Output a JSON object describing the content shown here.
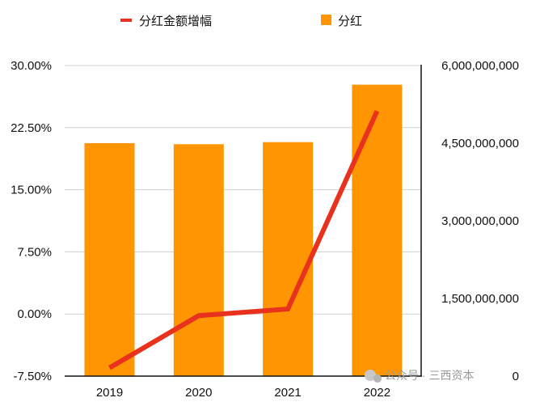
{
  "chart_data": {
    "type": "bar+line",
    "title": "",
    "categories": [
      "2019",
      "2020",
      "2021",
      "2022"
    ],
    "series": [
      {
        "name": "分红",
        "type": "bar",
        "axis": "right",
        "color": "#FF9500",
        "values": [
          4500000000,
          4480000000,
          4520000000,
          5630000000
        ]
      },
      {
        "name": "分红金额增幅",
        "type": "line",
        "axis": "left",
        "color": "#E8321E",
        "values": [
          -6.5,
          -0.2,
          0.6,
          24.5
        ]
      }
    ],
    "left_axis": {
      "range": [
        -7.5,
        30
      ],
      "ticks": [
        "-7.50%",
        "0.00%",
        "7.50%",
        "15.00%",
        "22.50%",
        "30.00%"
      ],
      "tick_values": [
        -7.5,
        0,
        7.5,
        15,
        22.5,
        30
      ]
    },
    "right_axis": {
      "range": [
        0,
        6000000000
      ],
      "ticks": [
        "0",
        "1,500,000,000",
        "3,000,000,000",
        "4,500,000,000",
        "6,000,000,000"
      ],
      "tick_values": [
        0,
        1500000000,
        3000000000,
        4500000000,
        6000000000
      ]
    },
    "legend": {
      "position": "top",
      "entries": [
        "分红金额增幅",
        "分红"
      ]
    },
    "grid": true
  },
  "watermark": "公众号 · 三西资本"
}
